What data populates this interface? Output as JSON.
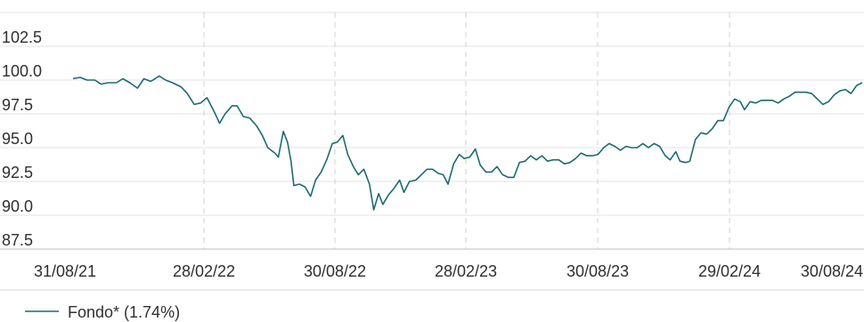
{
  "chart_data": {
    "type": "line",
    "title": "",
    "xlabel": "",
    "ylabel": "",
    "x_ticks": [
      "31/08/21",
      "28/02/22",
      "30/08/22",
      "28/02/23",
      "30/08/23",
      "29/02/24",
      "30/08/24"
    ],
    "y_ticks": [
      "102.5",
      "100.0",
      "97.5",
      "95.0",
      "92.5",
      "90.0",
      "87.5"
    ],
    "ylim": [
      87.5,
      105.0
    ],
    "xlim": [
      "2021-08-31",
      "2024-09-30"
    ],
    "grid": {
      "horizontal": true,
      "vertical_dashed": true
    },
    "series": [
      {
        "name": "Fondo* (1.74%)",
        "color": "#1d6a72",
        "points": [
          [
            "2021-08-31",
            100.1
          ],
          [
            "2021-09-10",
            100.2
          ],
          [
            "2021-09-20",
            100.0
          ],
          [
            "2021-10-01",
            100.0
          ],
          [
            "2021-10-10",
            99.7
          ],
          [
            "2021-10-20",
            99.8
          ],
          [
            "2021-11-01",
            99.8
          ],
          [
            "2021-11-10",
            100.1
          ],
          [
            "2021-11-20",
            99.8
          ],
          [
            "2021-12-01",
            99.4
          ],
          [
            "2021-12-10",
            100.1
          ],
          [
            "2021-12-20",
            99.9
          ],
          [
            "2022-01-01",
            100.3
          ],
          [
            "2022-01-10",
            100.0
          ],
          [
            "2022-01-20",
            99.8
          ],
          [
            "2022-02-01",
            99.5
          ],
          [
            "2022-02-10",
            99.0
          ],
          [
            "2022-02-20",
            98.2
          ],
          [
            "2022-03-01",
            98.3
          ],
          [
            "2022-03-10",
            98.7
          ],
          [
            "2022-03-20",
            97.7
          ],
          [
            "2022-03-28",
            96.8
          ],
          [
            "2022-04-05",
            97.5
          ],
          [
            "2022-04-15",
            98.1
          ],
          [
            "2022-04-22",
            98.1
          ],
          [
            "2022-05-01",
            97.3
          ],
          [
            "2022-05-10",
            97.2
          ],
          [
            "2022-05-20",
            96.6
          ],
          [
            "2022-05-28",
            95.9
          ],
          [
            "2022-06-05",
            95.0
          ],
          [
            "2022-06-15",
            94.6
          ],
          [
            "2022-06-20",
            94.3
          ],
          [
            "2022-06-27",
            96.2
          ],
          [
            "2022-07-03",
            95.4
          ],
          [
            "2022-07-08",
            94.0
          ],
          [
            "2022-07-12",
            92.2
          ],
          [
            "2022-07-20",
            92.3
          ],
          [
            "2022-07-28",
            92.1
          ],
          [
            "2022-08-05",
            91.4
          ],
          [
            "2022-08-12",
            92.6
          ],
          [
            "2022-08-20",
            93.2
          ],
          [
            "2022-08-28",
            94.1
          ],
          [
            "2022-09-05",
            95.3
          ],
          [
            "2022-09-12",
            95.4
          ],
          [
            "2022-09-20",
            95.9
          ],
          [
            "2022-09-27",
            94.5
          ],
          [
            "2022-10-05",
            93.6
          ],
          [
            "2022-10-12",
            93.0
          ],
          [
            "2022-10-20",
            93.4
          ],
          [
            "2022-10-28",
            92.3
          ],
          [
            "2022-11-03",
            90.4
          ],
          [
            "2022-11-10",
            91.6
          ],
          [
            "2022-11-16",
            90.8
          ],
          [
            "2022-11-24",
            91.5
          ],
          [
            "2022-12-02",
            92.0
          ],
          [
            "2022-12-10",
            92.6
          ],
          [
            "2022-12-16",
            91.7
          ],
          [
            "2022-12-24",
            92.5
          ],
          [
            "2023-01-02",
            92.6
          ],
          [
            "2023-01-10",
            93.0
          ],
          [
            "2023-01-18",
            93.4
          ],
          [
            "2023-01-26",
            93.4
          ],
          [
            "2023-02-03",
            93.1
          ],
          [
            "2023-02-10",
            93.0
          ],
          [
            "2023-02-17",
            92.3
          ],
          [
            "2023-02-25",
            93.8
          ],
          [
            "2023-03-05",
            94.5
          ],
          [
            "2023-03-12",
            94.2
          ],
          [
            "2023-03-20",
            94.3
          ],
          [
            "2023-03-28",
            94.9
          ],
          [
            "2023-04-04",
            93.7
          ],
          [
            "2023-04-12",
            93.2
          ],
          [
            "2023-04-20",
            93.2
          ],
          [
            "2023-04-28",
            93.6
          ],
          [
            "2023-05-06",
            93.0
          ],
          [
            "2023-05-14",
            92.8
          ],
          [
            "2023-05-22",
            92.8
          ],
          [
            "2023-05-30",
            93.9
          ],
          [
            "2023-06-07",
            94.0
          ],
          [
            "2023-06-15",
            94.4
          ],
          [
            "2023-06-23",
            94.1
          ],
          [
            "2023-07-01",
            94.4
          ],
          [
            "2023-07-09",
            94.0
          ],
          [
            "2023-07-17",
            94.1
          ],
          [
            "2023-07-25",
            94.1
          ],
          [
            "2023-08-02",
            93.8
          ],
          [
            "2023-08-10",
            93.9
          ],
          [
            "2023-08-18",
            94.2
          ],
          [
            "2023-08-26",
            94.6
          ],
          [
            "2023-09-03",
            94.4
          ],
          [
            "2023-09-11",
            94.4
          ],
          [
            "2023-09-19",
            94.5
          ],
          [
            "2023-09-27",
            95.0
          ],
          [
            "2023-10-05",
            95.3
          ],
          [
            "2023-10-13",
            95.1
          ],
          [
            "2023-10-21",
            94.8
          ],
          [
            "2023-10-29",
            95.1
          ],
          [
            "2023-11-06",
            95.0
          ],
          [
            "2023-11-14",
            95.0
          ],
          [
            "2023-11-22",
            95.3
          ],
          [
            "2023-11-30",
            95.0
          ],
          [
            "2023-12-08",
            95.3
          ],
          [
            "2023-12-16",
            95.1
          ],
          [
            "2023-12-24",
            94.4
          ],
          [
            "2023-12-31",
            94.1
          ],
          [
            "2024-01-08",
            94.7
          ],
          [
            "2024-01-14",
            94.0
          ],
          [
            "2024-01-22",
            93.9
          ],
          [
            "2024-01-28",
            94.0
          ],
          [
            "2024-02-05",
            95.6
          ],
          [
            "2024-02-13",
            96.1
          ],
          [
            "2024-02-21",
            96.0
          ],
          [
            "2024-02-29",
            96.4
          ],
          [
            "2024-03-08",
            97.0
          ],
          [
            "2024-03-16",
            97.0
          ],
          [
            "2024-03-24",
            98.0
          ],
          [
            "2024-04-01",
            98.6
          ],
          [
            "2024-04-09",
            98.4
          ],
          [
            "2024-04-15",
            97.8
          ],
          [
            "2024-04-23",
            98.4
          ],
          [
            "2024-05-01",
            98.3
          ],
          [
            "2024-05-09",
            98.5
          ],
          [
            "2024-05-17",
            98.5
          ],
          [
            "2024-05-25",
            98.5
          ],
          [
            "2024-06-02",
            98.3
          ],
          [
            "2024-06-10",
            98.6
          ],
          [
            "2024-06-18",
            98.8
          ],
          [
            "2024-06-26",
            99.1
          ],
          [
            "2024-07-04",
            99.1
          ],
          [
            "2024-07-12",
            99.1
          ],
          [
            "2024-07-20",
            99.0
          ],
          [
            "2024-07-28",
            98.6
          ],
          [
            "2024-08-05",
            98.2
          ],
          [
            "2024-08-13",
            98.4
          ],
          [
            "2024-08-21",
            98.9
          ],
          [
            "2024-08-29",
            99.2
          ],
          [
            "2024-09-06",
            99.3
          ],
          [
            "2024-09-14",
            99.0
          ],
          [
            "2024-09-22",
            99.6
          ],
          [
            "2024-09-30",
            99.8
          ]
        ]
      }
    ],
    "legend": {
      "position": "bottom-left",
      "label": "Fondo* (1.74%)"
    }
  }
}
